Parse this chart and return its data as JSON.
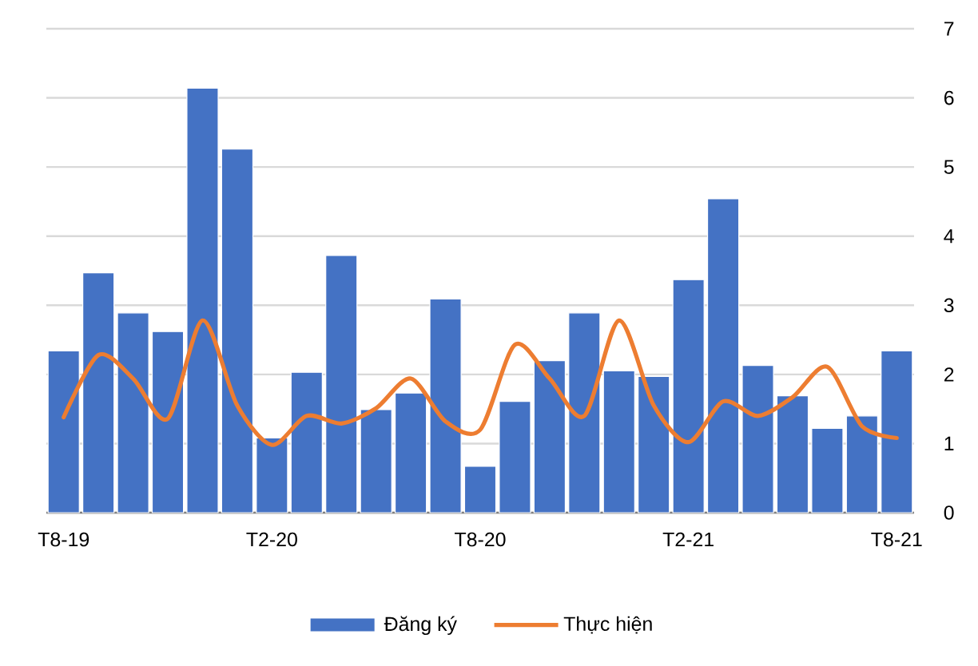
{
  "chart_data": {
    "type": "bar",
    "categories": [
      "T8-19",
      null,
      null,
      null,
      null,
      null,
      "T2-20",
      null,
      null,
      null,
      null,
      null,
      "T8-20",
      null,
      null,
      null,
      null,
      null,
      "T2-21",
      null,
      null,
      null,
      null,
      null,
      "T8-21"
    ],
    "series": [
      {
        "name": "Đăng ký",
        "color": "#4472c4",
        "values": [
          2.34,
          3.47,
          2.89,
          2.62,
          6.14,
          5.26,
          1.08,
          2.03,
          3.72,
          1.49,
          1.73,
          3.09,
          0.67,
          1.61,
          2.2,
          2.89,
          2.05,
          1.97,
          3.37,
          4.54,
          2.13,
          1.69,
          1.22,
          1.4,
          2.34
        ]
      },
      {
        "name": "Thực hiện",
        "type": "line",
        "color": "#ed7d31",
        "values": [
          1.38,
          2.28,
          1.94,
          1.36,
          2.78,
          1.55,
          0.98,
          1.4,
          1.29,
          1.51,
          1.94,
          1.32,
          1.2,
          2.43,
          1.94,
          1.4,
          2.78,
          1.55,
          1.02,
          1.61,
          1.4,
          1.67,
          2.11,
          1.25,
          1.08
        ]
      }
    ],
    "ylim": [
      0,
      7
    ],
    "yticks": [
      0,
      1,
      2,
      3,
      4,
      5,
      6,
      7
    ],
    "grid": "y",
    "legend": "bottom",
    "marker": "none",
    "line_style": "solid"
  }
}
